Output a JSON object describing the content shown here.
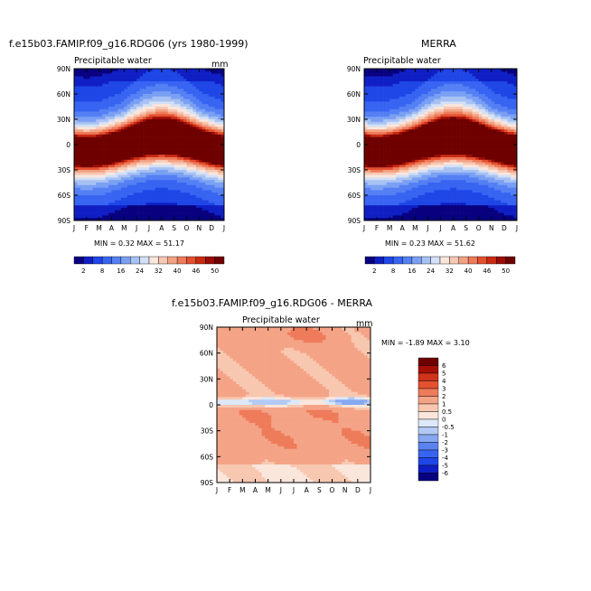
{
  "colors": {
    "abs_scale": [
      "#08007f",
      "#0f1fc4",
      "#1f46e6",
      "#3864f2",
      "#5580f4",
      "#7aa0f4",
      "#a7c1f3",
      "#d3e0f6",
      "#fbe6dc",
      "#f7c8b4",
      "#f3a283",
      "#ee7b5a",
      "#e4502f",
      "#c92b12",
      "#9b0c05",
      "#6e0000"
    ],
    "diff_scale": [
      "#08007f",
      "#0f1fc4",
      "#1f46e6",
      "#3864f2",
      "#5a83f0",
      "#86a8f2",
      "#b2c9f4",
      "#dde8f8",
      "#fbe6dc",
      "#f8c7b0",
      "#f4a386",
      "#ee7b5a",
      "#e45232",
      "#d0321a",
      "#a70f06",
      "#6e0000"
    ]
  },
  "chart_data": [
    {
      "type": "heatmap",
      "title": "f.e15b03.FAMIP.f09_g16.RDG06 (yrs 1980-1999)",
      "subtitle": "Precipitable water",
      "units": "mm",
      "x_ticks": [
        "J",
        "F",
        "M",
        "A",
        "M",
        "J",
        "J",
        "A",
        "S",
        "O",
        "N",
        "D",
        "J"
      ],
      "y_ticks": [
        "90N",
        "60N",
        "30N",
        "0",
        "30S",
        "60S",
        "90S"
      ],
      "stats": "MIN =   0.32  MAX =  51.17",
      "colorbar_levels": [
        "2",
        "8",
        "16",
        "24",
        "32",
        "40",
        "46",
        "50"
      ],
      "min": 0.32,
      "max": 51.17
    },
    {
      "type": "heatmap",
      "title": "MERRA",
      "subtitle": "Precipitable water",
      "units": "mm",
      "x_ticks": [
        "J",
        "F",
        "M",
        "A",
        "M",
        "J",
        "J",
        "A",
        "S",
        "O",
        "N",
        "D",
        "J"
      ],
      "y_ticks": [
        "90N",
        "60N",
        "30N",
        "0",
        "30S",
        "60S",
        "90S"
      ],
      "stats": "MIN =   0.23  MAX =  51.62",
      "colorbar_levels": [
        "2",
        "8",
        "16",
        "24",
        "32",
        "40",
        "46",
        "50"
      ],
      "min": 0.23,
      "max": 51.62
    },
    {
      "type": "heatmap",
      "title": "f.e15b03.FAMIP.f09_g16.RDG06 - MERRA",
      "subtitle": "Precipitable water",
      "units": "mm",
      "x_ticks": [
        "J",
        "F",
        "M",
        "A",
        "M",
        "J",
        "J",
        "A",
        "S",
        "O",
        "N",
        "D",
        "J"
      ],
      "y_ticks": [
        "90N",
        "60N",
        "30N",
        "0",
        "30S",
        "60S",
        "90S"
      ],
      "stats": "MIN =  -1.89  MAX =    3.10",
      "colorbar_levels": [
        "6",
        "5",
        "4",
        "3",
        "2",
        "1",
        "0.5",
        "0",
        "-0.5",
        "-1",
        "-2",
        "-3",
        "-4",
        "-5",
        "-6"
      ],
      "min": -1.89,
      "max": 3.1
    }
  ]
}
